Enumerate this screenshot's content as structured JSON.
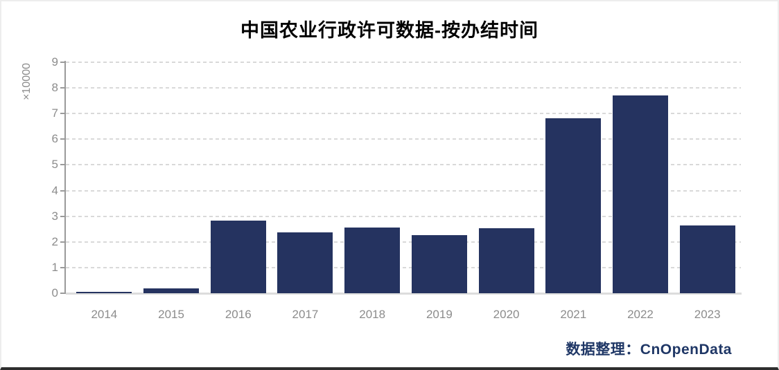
{
  "chart_data": {
    "type": "bar",
    "title": "中国农业行政许可数据-按办结时间",
    "y_unit_label": "×10000",
    "categories": [
      "2014",
      "2015",
      "2016",
      "2017",
      "2018",
      "2019",
      "2020",
      "2021",
      "2022",
      "2023"
    ],
    "values": [
      0.05,
      0.2,
      2.83,
      2.38,
      2.57,
      2.26,
      2.53,
      6.82,
      7.71,
      2.64
    ],
    "ylim": [
      0,
      9
    ],
    "yticks": [
      0,
      1,
      2,
      3,
      4,
      5,
      6,
      7,
      8,
      9
    ],
    "grid": "horizontal-dashed",
    "legend": "none",
    "bar_color": "#253360",
    "grid_color": "#d9d9d9",
    "axis_color": "#9a9a9a",
    "tick_label_color": "#8c8c8c"
  },
  "footer": {
    "credit": "数据整理：CnOpenData",
    "credit_color": "#1f3766"
  }
}
